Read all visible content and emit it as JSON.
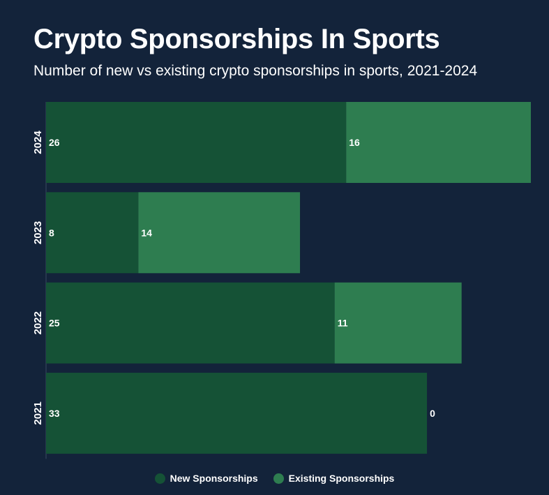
{
  "chart_data": {
    "type": "bar",
    "orientation": "horizontal",
    "stacked": true,
    "title": "Crypto Sponsorships In Sports",
    "subtitle": "Number of new vs existing crypto sponsorships in sports, 2021-2024",
    "categories": [
      "2024",
      "2023",
      "2022",
      "2021"
    ],
    "series": [
      {
        "name": "New Sponsorships",
        "values": [
          26,
          8,
          25,
          33
        ],
        "color": "#155236"
      },
      {
        "name": "Existing Sponsorships",
        "values": [
          16,
          14,
          11,
          0
        ],
        "color": "#2e7d50"
      }
    ],
    "xlim": [
      0,
      42
    ],
    "xlabel": "",
    "ylabel": "",
    "grid": false,
    "legend": "bottom-center"
  },
  "colors": {
    "background": "#13233a",
    "text": "#ffffff"
  }
}
